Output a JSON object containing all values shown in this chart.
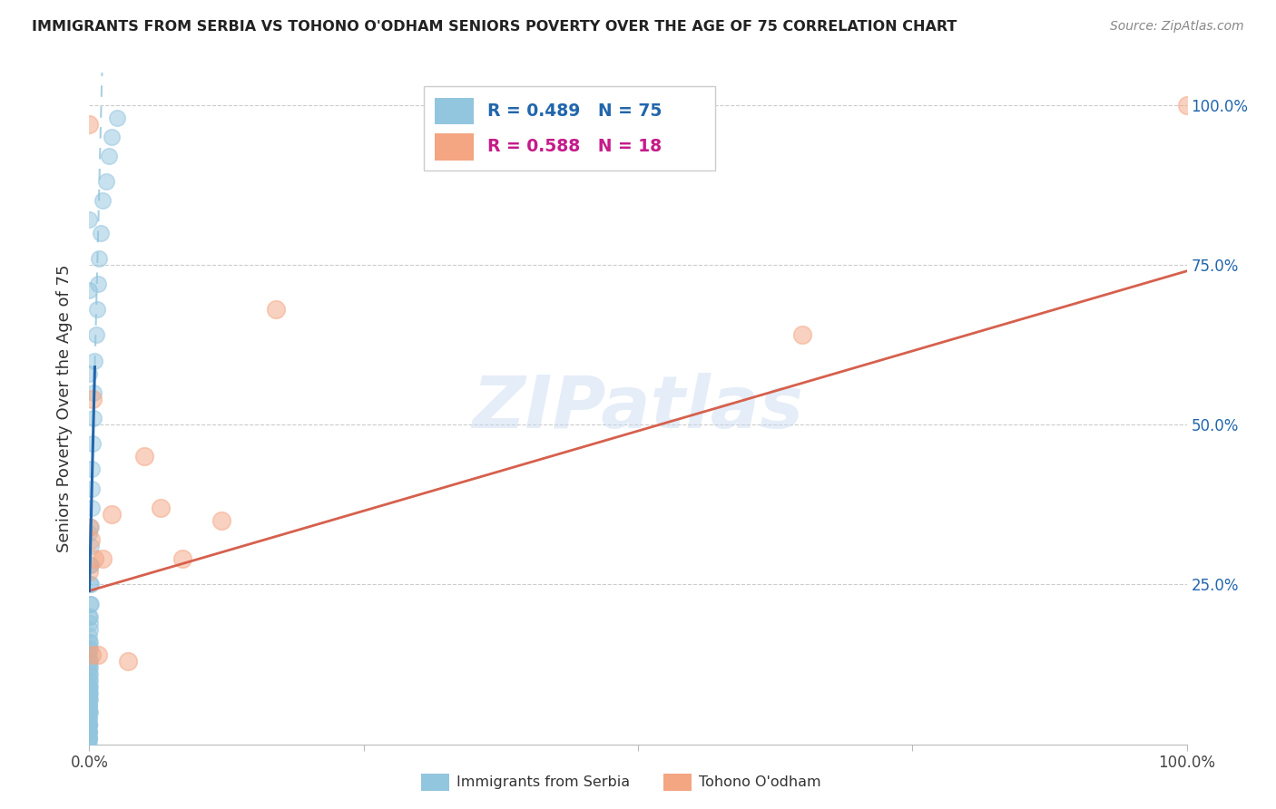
{
  "title": "IMMIGRANTS FROM SERBIA VS TOHONO O'ODHAM SENIORS POVERTY OVER THE AGE OF 75 CORRELATION CHART",
  "source": "Source: ZipAtlas.com",
  "ylabel": "Seniors Poverty Over the Age of 75",
  "legend_label_1": "Immigrants from Serbia",
  "legend_label_2": "Tohono O'odham",
  "R1": 0.489,
  "N1": 75,
  "R2": 0.588,
  "N2": 18,
  "color_blue": "#92c5de",
  "color_blue_line": "#2166ac",
  "color_blue_dashed": "#92c5de",
  "color_pink": "#f4a582",
  "color_pink_line": "#d6604d",
  "watermark": "ZIPatlas",
  "blue_scatter_x": [
    0.0,
    0.0,
    0.0,
    0.0,
    0.0,
    0.0,
    0.0,
    0.0,
    0.0,
    0.0,
    0.0,
    0.0,
    0.0,
    0.0,
    0.0,
    0.0,
    0.0,
    0.0,
    0.0,
    0.0,
    0.0,
    0.0,
    0.0,
    0.0,
    0.0,
    0.0,
    0.0,
    0.0,
    0.0,
    0.0,
    0.0001,
    0.0001,
    0.0001,
    0.0001,
    0.0002,
    0.0002,
    0.0002,
    0.0003,
    0.0003,
    0.0004,
    0.0004,
    0.0005,
    0.0005,
    0.0006,
    0.0007,
    0.0008,
    0.001,
    0.001,
    0.001,
    0.0012,
    0.0015,
    0.0018,
    0.002,
    0.0025,
    0.003,
    0.0035,
    0.004,
    0.005,
    0.006,
    0.007,
    0.008,
    0.009,
    0.01,
    0.012,
    0.015,
    0.018,
    0.02,
    0.025,
    0.0,
    0.0,
    0.0,
    0.0,
    0.0,
    0.0,
    0.0
  ],
  "blue_scatter_y": [
    0.0,
    0.01,
    0.02,
    0.03,
    0.01,
    0.02,
    0.03,
    0.04,
    0.02,
    0.01,
    0.05,
    0.03,
    0.04,
    0.06,
    0.07,
    0.05,
    0.08,
    0.09,
    0.06,
    0.1,
    0.11,
    0.12,
    0.13,
    0.14,
    0.08,
    0.07,
    0.15,
    0.16,
    0.17,
    0.09,
    0.05,
    0.08,
    0.12,
    0.18,
    0.1,
    0.15,
    0.2,
    0.07,
    0.22,
    0.09,
    0.25,
    0.11,
    0.28,
    0.13,
    0.16,
    0.19,
    0.22,
    0.25,
    0.28,
    0.31,
    0.34,
    0.37,
    0.4,
    0.43,
    0.47,
    0.51,
    0.55,
    0.6,
    0.64,
    0.68,
    0.72,
    0.76,
    0.8,
    0.85,
    0.88,
    0.92,
    0.95,
    0.98,
    0.03,
    0.06,
    0.2,
    0.33,
    0.58,
    0.71,
    0.82
  ],
  "pink_scatter_x": [
    0.0,
    0.0,
    0.0,
    0.001,
    0.002,
    0.003,
    0.005,
    0.008,
    0.012,
    0.02,
    0.035,
    0.05,
    0.065,
    0.085,
    0.12,
    0.17,
    0.65,
    1.0
  ],
  "pink_scatter_y": [
    0.97,
    0.34,
    0.27,
    0.32,
    0.14,
    0.54,
    0.29,
    0.14,
    0.29,
    0.36,
    0.13,
    0.45,
    0.37,
    0.29,
    0.35,
    0.68,
    0.64,
    1.0
  ],
  "xlim": [
    0.0,
    1.0
  ],
  "ylim": [
    0.0,
    1.05
  ],
  "ytick_positions": [
    0.25,
    0.5,
    0.75,
    1.0
  ],
  "xtick_positions": [
    0.0,
    0.25,
    0.5,
    0.75,
    1.0
  ],
  "xtick_labels": [
    "0.0%",
    "",
    "",
    "",
    "100.0%"
  ]
}
